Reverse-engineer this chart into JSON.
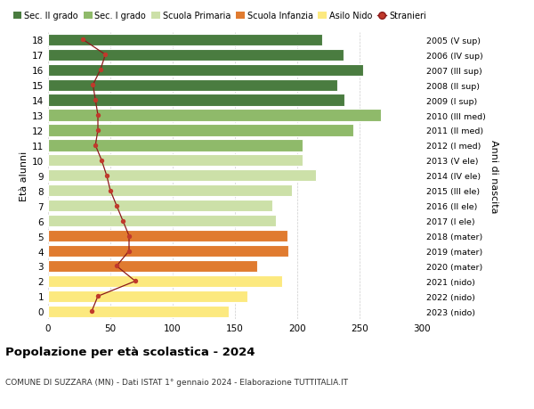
{
  "ages": [
    0,
    1,
    2,
    3,
    4,
    5,
    6,
    7,
    8,
    9,
    10,
    11,
    12,
    13,
    14,
    15,
    16,
    17,
    18
  ],
  "bar_values": [
    145,
    160,
    188,
    168,
    193,
    192,
    183,
    180,
    196,
    215,
    204,
    204,
    245,
    267,
    238,
    232,
    253,
    237,
    220
  ],
  "right_labels": [
    "2023 (nido)",
    "2022 (nido)",
    "2021 (nido)",
    "2020 (mater)",
    "2019 (mater)",
    "2018 (mater)",
    "2017 (I ele)",
    "2016 (II ele)",
    "2015 (III ele)",
    "2014 (IV ele)",
    "2013 (V ele)",
    "2012 (I med)",
    "2011 (II med)",
    "2010 (III med)",
    "2009 (I sup)",
    "2008 (II sup)",
    "2007 (III sup)",
    "2006 (IV sup)",
    "2005 (V sup)"
  ],
  "bar_colors": [
    "#fce97f",
    "#fce97f",
    "#fce97f",
    "#e07b30",
    "#e07b30",
    "#e07b30",
    "#cce0a8",
    "#cce0a8",
    "#cce0a8",
    "#cce0a8",
    "#cce0a8",
    "#8fba6a",
    "#8fba6a",
    "#8fba6a",
    "#4a7c40",
    "#4a7c40",
    "#4a7c40",
    "#4a7c40",
    "#4a7c40"
  ],
  "stranieri_values": [
    35,
    40,
    70,
    55,
    65,
    65,
    60,
    55,
    50,
    47,
    43,
    38,
    40,
    40,
    38,
    36,
    42,
    46,
    28
  ],
  "legend_labels": [
    "Sec. II grado",
    "Sec. I grado",
    "Scuola Primaria",
    "Scuola Infanzia",
    "Asilo Nido",
    "Stranieri"
  ],
  "legend_colors": [
    "#4a7c40",
    "#8fba6a",
    "#cce0a8",
    "#e07b30",
    "#fce97f",
    "#c0392b"
  ],
  "title": "Popolazione per età scolastica - 2024",
  "subtitle": "COMUNE DI SUZZARA (MN) - Dati ISTAT 1° gennaio 2024 - Elaborazione TUTTITALIA.IT",
  "ylabel": "Età alunni",
  "right_ylabel": "Anni di nascita",
  "xlim": [
    0,
    300
  ],
  "xticks": [
    0,
    50,
    100,
    150,
    200,
    250,
    300
  ],
  "background_color": "#ffffff",
  "grid_color": "#cccccc"
}
